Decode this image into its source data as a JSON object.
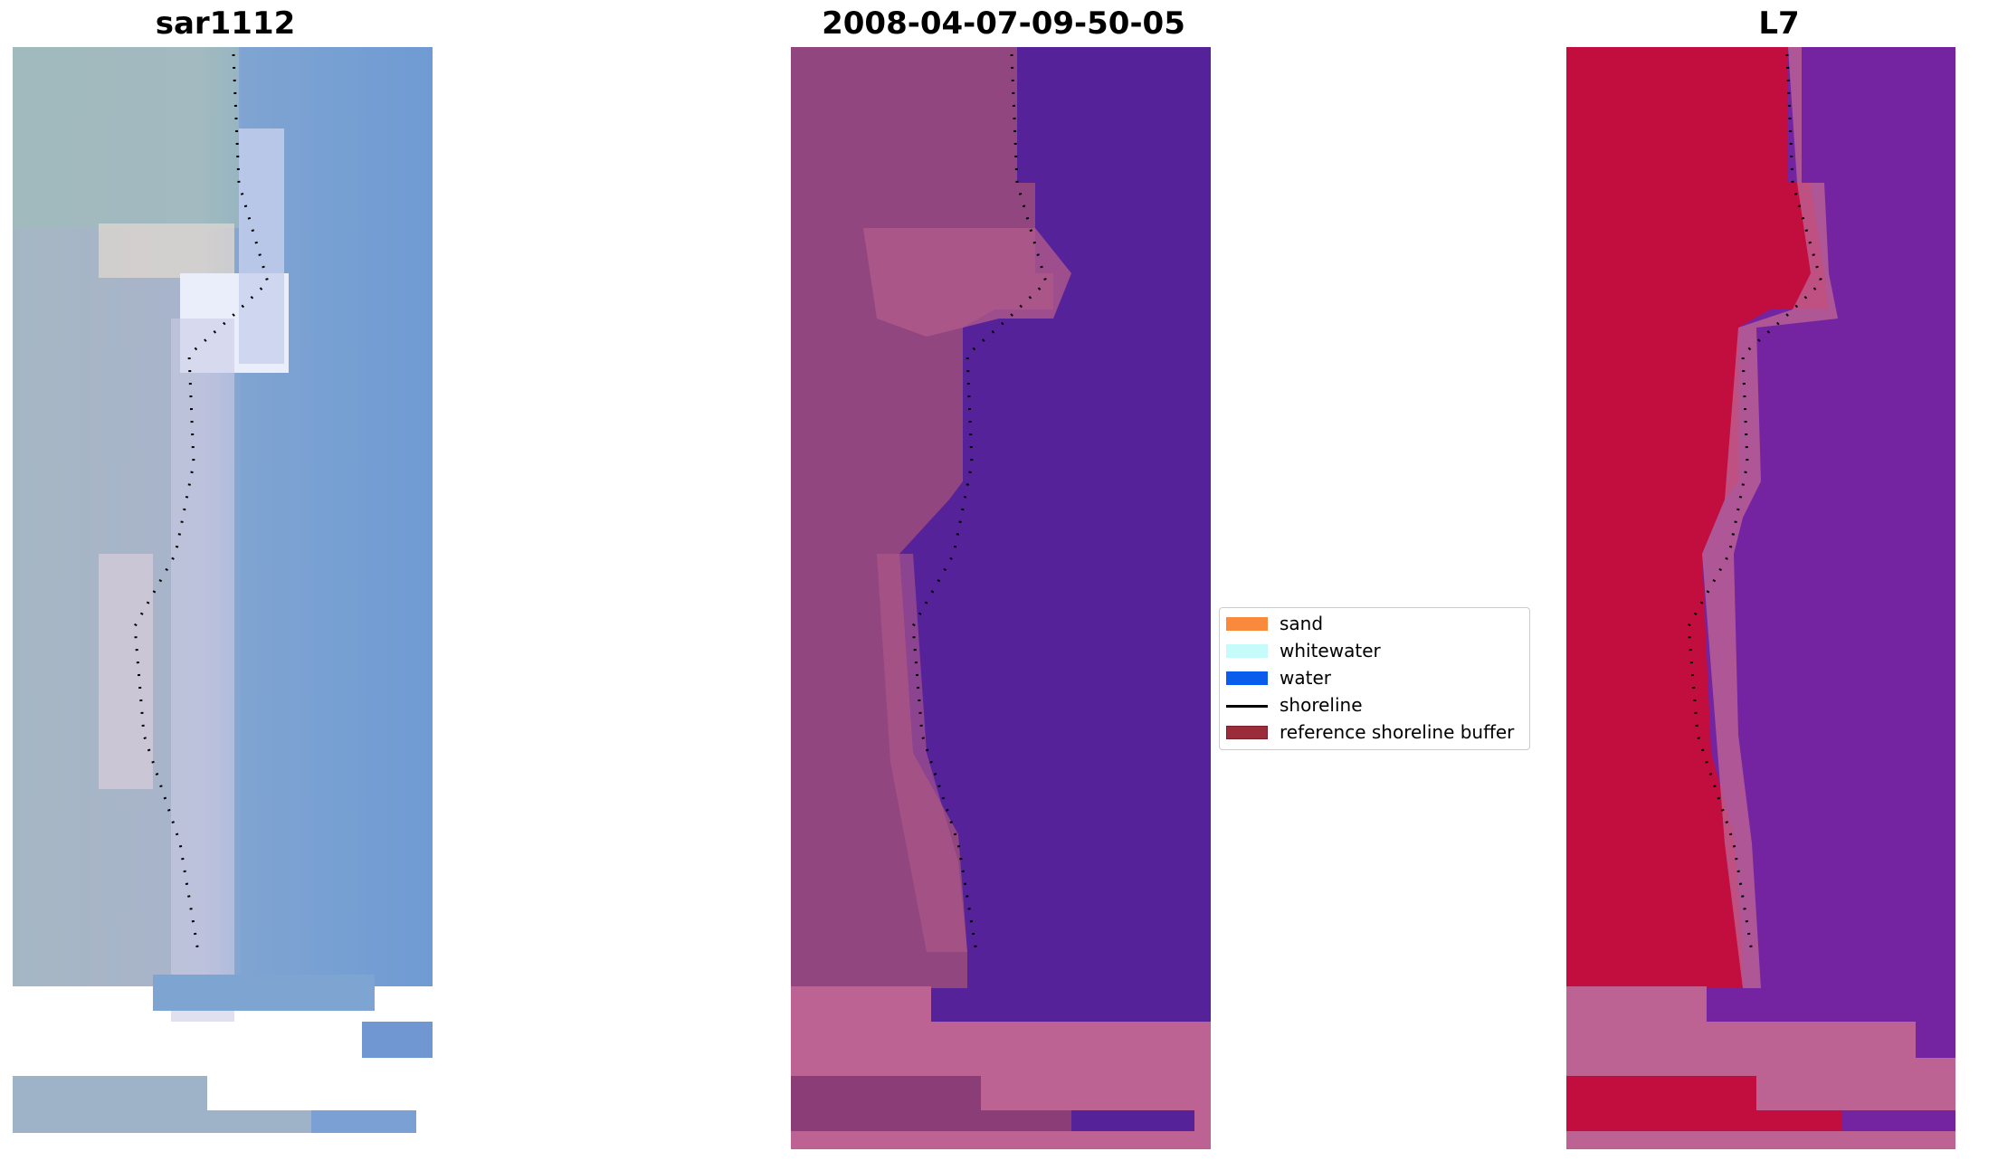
{
  "panels": [
    {
      "title": "sar1112",
      "image": "sar-rgb-image"
    },
    {
      "title": "2008-04-07-09-50-05",
      "image": "classified-image"
    },
    {
      "title": "L7",
      "image": "l7-false-color-image"
    }
  ],
  "legend": {
    "items": [
      {
        "label": "sand",
        "color": "#f98a3c",
        "kind": "patch"
      },
      {
        "label": "whitewater",
        "color": "#c6fbfb",
        "kind": "patch"
      },
      {
        "label": "water",
        "color": "#0a5cec",
        "kind": "patch"
      },
      {
        "label": "shoreline",
        "color": "#000000",
        "kind": "line"
      },
      {
        "label": "reference shoreline buffer",
        "color": "#9b2d3a",
        "kind": "patch"
      }
    ]
  },
  "colors": {
    "sar_land": "#a6b3c6",
    "sar_water": "#6f9bd3",
    "classified_land": "#8f4680",
    "classified_water": "#56229a",
    "classified_buffer": "#bb6193",
    "l7_land": "#c20e3f",
    "l7_water": "#7424a0",
    "l7_buffer": "#bb6193"
  }
}
